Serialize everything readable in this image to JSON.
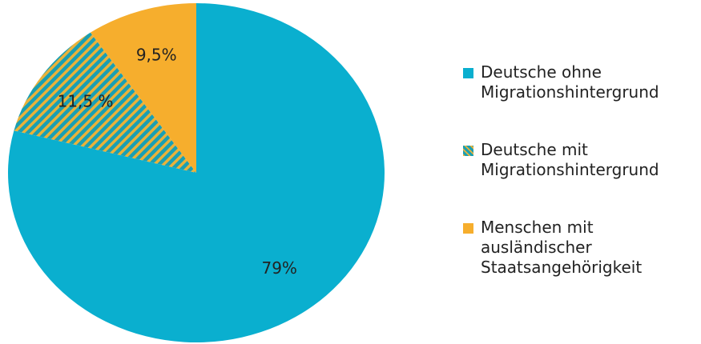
{
  "chart_data": {
    "type": "pie",
    "categories": [
      "Deutsche ohne\nMigrationshintergrund",
      "Deutsche mit\nMigrationshintergrund",
      "Menschen mit\nausländischer\nStaatsangehörigkeit"
    ],
    "values": [
      79,
      11.5,
      9.5
    ],
    "value_labels": [
      "79%",
      "11,5 %",
      "9,5%"
    ],
    "colors": [
      "#0aafcf",
      "hatched",
      "#f6ae2d"
    ],
    "legend": "right"
  }
}
